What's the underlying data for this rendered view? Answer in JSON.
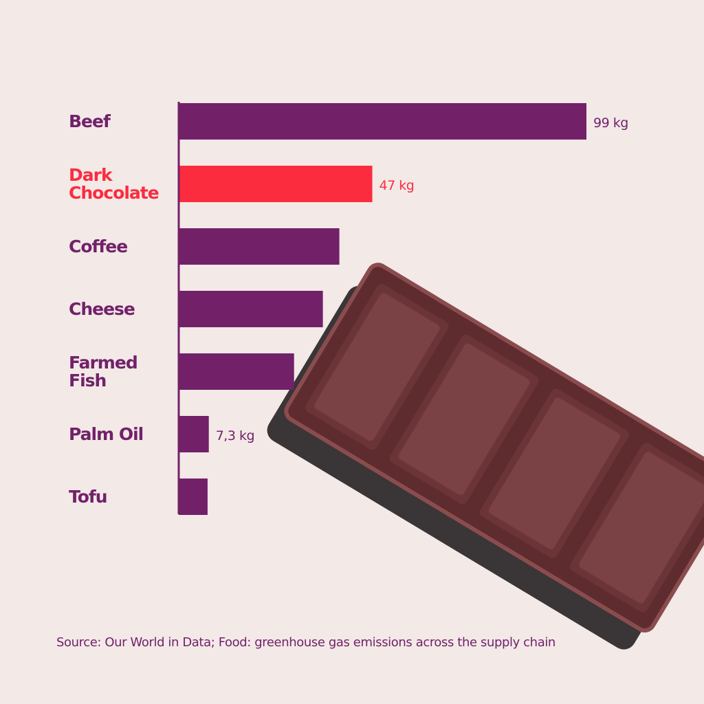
{
  "chart_data": {
    "type": "bar",
    "orientation": "horizontal",
    "categories": [
      "Beef",
      "Dark Chocolate",
      "Coffee",
      "Cheese",
      "Farmed Fish",
      "Palm Oil",
      "Tofu"
    ],
    "values": [
      99,
      47,
      39,
      35,
      28,
      7.3,
      7
    ],
    "value_labels": [
      "99 kg",
      "47 kg",
      null,
      null,
      null,
      "7,3 kg",
      null
    ],
    "colors": [
      "#722169",
      "#fc2c3f",
      "#722169",
      "#722169",
      "#722169",
      "#722169",
      "#722169"
    ],
    "xlim": [
      0,
      99
    ],
    "source": "Source: Our World in Data; Food: greenhouse gas emissions across the supply chain"
  }
}
